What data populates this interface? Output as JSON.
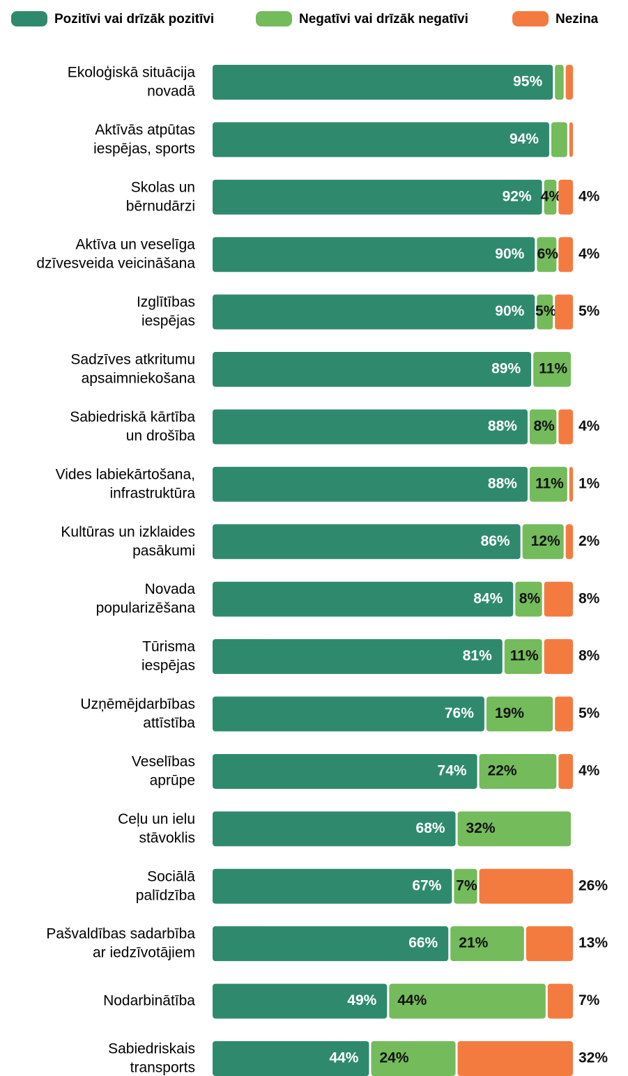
{
  "chart_data": {
    "type": "stacked-bar",
    "categories": [
      "Ekoloģiskā situācija\nnovadā",
      "Aktīvās atpūtas\niespējas, sports",
      "Skolas un\nbērnudārzi",
      "Aktīva un veselīga\ndzīvesveida veicināšana",
      "Izglītības\niespējas",
      "Sadzīves atkritumu\napsaimniekošana",
      "Sabiedriskā kārtība\nun drošība",
      "Vides labiekārtošana,\ninfrastruktūra",
      "Kultūras un izklaides\npasākumi",
      "Novada\npopularizēšana",
      "Tūrisma\niespējas",
      "Uzņēmējdarbības\nattīstība",
      "Veselības\naprūpe",
      "Ceļu un ielu\nstāvoklis",
      "Sociālā\npalīdzība",
      "Pašvaldības sadarbība\nar iedzīvotājiem",
      "Nodarbinātība",
      "Sabiedriskais\ntransports"
    ],
    "series": [
      {
        "name": "Pozitīvi vai drīzāk pozitīvi",
        "color": "#2f8a6d",
        "values": [
          95,
          94,
          92,
          90,
          90,
          89,
          88,
          88,
          86,
          84,
          81,
          76,
          74,
          68,
          67,
          66,
          49,
          44
        ],
        "value_labels": [
          "95%",
          "94%",
          "92%",
          "90%",
          "90%",
          "89%",
          "88%",
          "88%",
          "86%",
          "84%",
          "81%",
          "76%",
          "74%",
          "68%",
          "67%",
          "66%",
          "49%",
          "44%"
        ]
      },
      {
        "name": "Negatīvi vai drīzāk negatīvi",
        "color": "#74bb5b",
        "values": [
          3,
          5,
          4,
          6,
          5,
          11,
          8,
          11,
          12,
          8,
          11,
          19,
          22,
          32,
          7,
          21,
          44,
          24
        ],
        "value_labels": [
          null,
          null,
          "4%",
          "6%",
          "5%",
          "11%",
          "8%",
          "11%",
          "12%",
          "8%",
          "11%",
          "19%",
          "22%",
          "32%",
          "7%",
          "21%",
          "44%",
          "24%"
        ]
      },
      {
        "name": "Nezina",
        "color": "#f47b40",
        "values": [
          2,
          1,
          4,
          4,
          5,
          0,
          4,
          1,
          2,
          8,
          8,
          5,
          4,
          0,
          26,
          13,
          7,
          32
        ],
        "value_labels": [
          null,
          null,
          "4%",
          "4%",
          "5%",
          null,
          "4%",
          "1%",
          "2%",
          "8%",
          "8%",
          "5%",
          "4%",
          null,
          "26%",
          "13%",
          "7%",
          "32%"
        ]
      }
    ],
    "xlim": [
      0,
      100
    ]
  }
}
